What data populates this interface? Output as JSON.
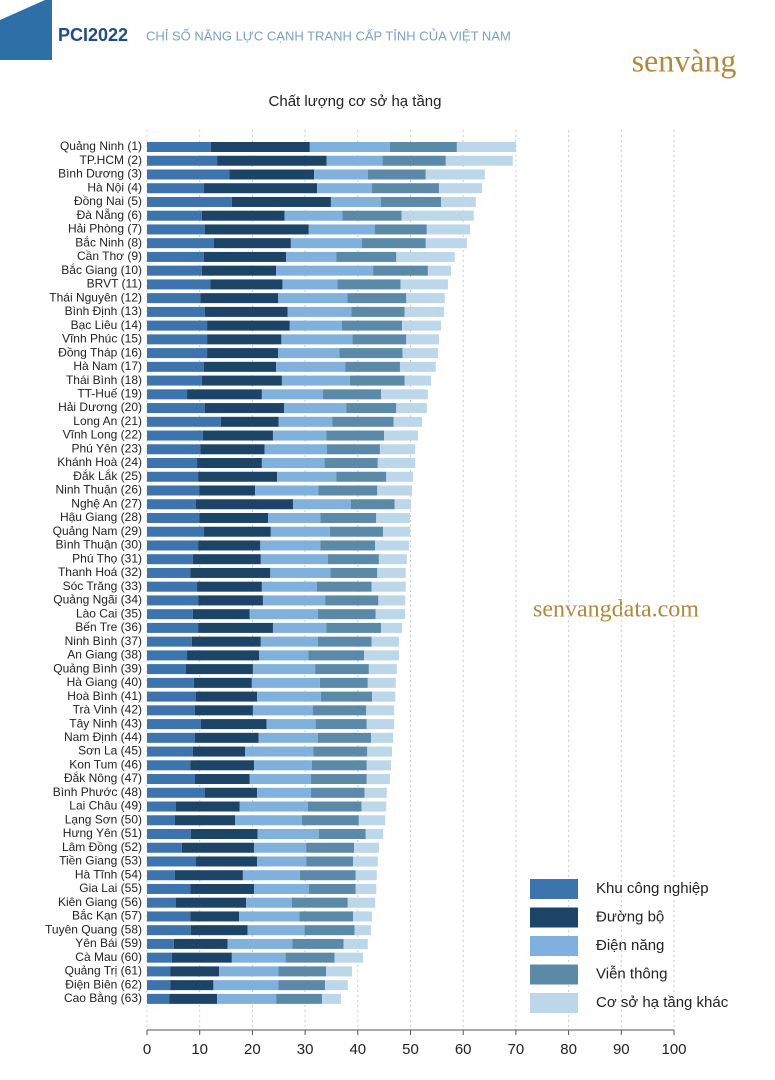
{
  "header": {
    "brand": "PCI2022",
    "subtitle": "CHỈ SỐ NĂNG LỰC CẠNH TRANH CẤP TỈNH CỦA VIỆT NAM",
    "logo": "senvàng",
    "watermark": "senvangdata.com"
  },
  "chart_data": {
    "type": "stacked_barh",
    "title": "Chất lượng cơ sở hạ tầng",
    "categories": [
      "Quảng Ninh (1)",
      "TP.HCM (2)",
      "Bình Dương (3)",
      "Hà Nội (4)",
      "Đồng Nai (5)",
      "Đà Nẵng (6)",
      "Hải Phòng (7)",
      "Bắc Ninh (8)",
      "Cần Thơ (9)",
      "Bắc Giang (10)",
      "BRVT (11)",
      "Thái Nguyên (12)",
      "Bình Định (13)",
      "Bạc Liêu (14)",
      "Vĩnh Phúc (15)",
      "Đồng Tháp (16)",
      "Hà Nam (17)",
      "Thái Bình (18)",
      "TT-Huế (19)",
      "Hải Dương (20)",
      "Long An (21)",
      "Vĩnh Long (22)",
      "Phú Yên (23)",
      "Khánh Hoà (24)",
      "Đắk Lắk (25)",
      "Ninh Thuận (26)",
      "Nghệ An (27)",
      "Hậu Giang (28)",
      "Quảng Nam (29)",
      "Bình Thuận (30)",
      "Phú Thọ (31)",
      "Thanh Hoá (32)",
      "Sóc Trăng (33)",
      "Quảng Ngãi (34)",
      "Lào Cai (35)",
      "Bến Tre (36)",
      "Ninh Bình (37)",
      "An Giang (38)",
      "Quảng Bình (39)",
      "Hà Giang (40)",
      "Hoà Bình (41)",
      "Trà Vinh (42)",
      "Tây Ninh (43)",
      "Nam Định (44)",
      "Sơn La (45)",
      "Kon Tum (46)",
      "Đắk Nông (47)",
      "Bình Phước (48)",
      "Lai Châu (49)",
      "Lạng Sơn (50)",
      "Hưng Yên (51)",
      "Lâm Đồng (52)",
      "Tiền Giang (53)",
      "Hà Tĩnh (54)",
      "Gia Lai (55)",
      "Kiên Giang (56)",
      "Bắc Kạn (57)",
      "Tuyên Quang (58)",
      "Yên Bái (59)",
      "Cà Mau (60)",
      "Quảng Trị (61)",
      "Điện Biên (62)",
      "Cao Bằng (63)"
    ],
    "series": [
      {
        "name": "Khu công nghiệp",
        "color": "#3d74ad",
        "values": [
          12.1,
          13.3,
          15.6,
          10.8,
          16.1,
          10.4,
          11.0,
          12.7,
          10.8,
          10.4,
          12.0,
          10.1,
          11.0,
          11.4,
          11.4,
          11.4,
          10.8,
          10.4,
          7.6,
          11.0,
          14.0,
          10.6,
          10.1,
          9.5,
          9.7,
          9.9,
          9.3,
          9.9,
          10.8,
          9.7,
          8.7,
          8.2,
          9.5,
          9.7,
          8.7,
          9.7,
          8.5,
          7.6,
          7.4,
          8.9,
          9.3,
          9.1,
          10.2,
          9.1,
          8.7,
          8.2,
          9.1,
          11.0,
          5.5,
          5.3,
          8.3,
          6.6,
          9.3,
          5.3,
          8.2,
          5.5,
          8.2,
          8.3,
          5.1,
          4.7,
          4.4,
          4.4,
          4.2
        ]
      },
      {
        "name": "Đường bộ",
        "color": "#1c4467",
        "values": [
          18.8,
          20.8,
          16.1,
          21.5,
          18.8,
          15.7,
          19.7,
          14.6,
          15.6,
          14.1,
          13.7,
          14.8,
          15.7,
          15.7,
          14.1,
          13.5,
          13.7,
          15.2,
          14.2,
          15.0,
          11.0,
          13.3,
          12.2,
          12.3,
          15.0,
          10.6,
          18.4,
          13.1,
          12.7,
          11.8,
          12.9,
          15.2,
          12.3,
          12.3,
          10.8,
          14.2,
          13.1,
          13.7,
          12.7,
          11.0,
          11.6,
          11.0,
          12.5,
          12.1,
          9.9,
          12.1,
          10.4,
          9.9,
          12.1,
          11.4,
          12.7,
          13.7,
          11.6,
          12.9,
          12.1,
          13.3,
          9.3,
          10.8,
          10.2,
          11.4,
          9.3,
          8.2,
          9.1
        ]
      },
      {
        "name": "Điện năng",
        "color": "#7fb1dc",
        "values": [
          15.2,
          10.6,
          10.2,
          10.4,
          9.5,
          11.0,
          12.5,
          13.5,
          9.5,
          18.4,
          10.4,
          13.1,
          12.1,
          9.9,
          13.5,
          11.6,
          13.1,
          12.9,
          11.6,
          11.8,
          10.2,
          10.1,
          11.8,
          11.9,
          11.2,
          12.0,
          11.0,
          9.9,
          11.2,
          11.4,
          12.7,
          11.4,
          10.4,
          11.8,
          12.9,
          10.1,
          10.8,
          9.3,
          11.8,
          12.9,
          12.1,
          11.4,
          9.3,
          11.2,
          13.0,
          11.0,
          11.6,
          10.2,
          12.9,
          12.7,
          11.6,
          9.9,
          9.3,
          10.8,
          10.4,
          8.7,
          11.4,
          10.8,
          12.3,
          10.2,
          11.2,
          12.3,
          11.2
        ]
      },
      {
        "name": "Viễn thông",
        "color": "#5b8aa8",
        "values": [
          12.7,
          12.0,
          11.0,
          12.7,
          11.4,
          11.2,
          9.9,
          12.1,
          11.4,
          10.4,
          12.0,
          11.2,
          10.1,
          11.4,
          10.2,
          12.0,
          10.4,
          10.4,
          11.0,
          9.5,
          11.6,
          11.0,
          10.1,
          10.1,
          9.5,
          11.2,
          8.3,
          10.6,
          10.1,
          10.4,
          9.7,
          8.9,
          10.4,
          10.1,
          11.0,
          10.4,
          10.2,
          10.6,
          10.2,
          9.1,
          9.7,
          10.1,
          9.7,
          10.1,
          10.2,
          10.4,
          10.6,
          10.2,
          10.2,
          10.8,
          8.9,
          9.1,
          8.9,
          10.6,
          8.9,
          10.6,
          10.2,
          9.5,
          9.7,
          9.3,
          9.1,
          8.9,
          8.7
        ]
      },
      {
        "name": "Cơ sở hạ tầng khác",
        "color": "#bcd6ea",
        "values": [
          11.2,
          12.7,
          11.2,
          8.2,
          6.6,
          13.7,
          8.2,
          7.8,
          11.1,
          4.4,
          9.0,
          7.3,
          7.5,
          7.4,
          6.2,
          6.7,
          6.8,
          5.0,
          8.9,
          5.8,
          5.4,
          6.4,
          6.7,
          7.1,
          5.1,
          6.6,
          3.1,
          6.4,
          5.1,
          6.4,
          5.3,
          5.4,
          6.5,
          5.1,
          5.6,
          4.0,
          5.2,
          6.6,
          5.3,
          5.3,
          4.4,
          5.3,
          5.2,
          4.2,
          4.7,
          4.6,
          4.4,
          4.2,
          4.7,
          5.0,
          3.3,
          4.7,
          4.7,
          4.0,
          3.9,
          5.2,
          3.6,
          3.1,
          4.6,
          5.4,
          4.9,
          4.3,
          3.6
        ]
      }
    ],
    "xlim": [
      0,
      100
    ],
    "xticks": [
      0,
      10,
      20,
      30,
      40,
      50,
      60,
      70,
      80,
      90,
      100
    ],
    "grid": true
  }
}
